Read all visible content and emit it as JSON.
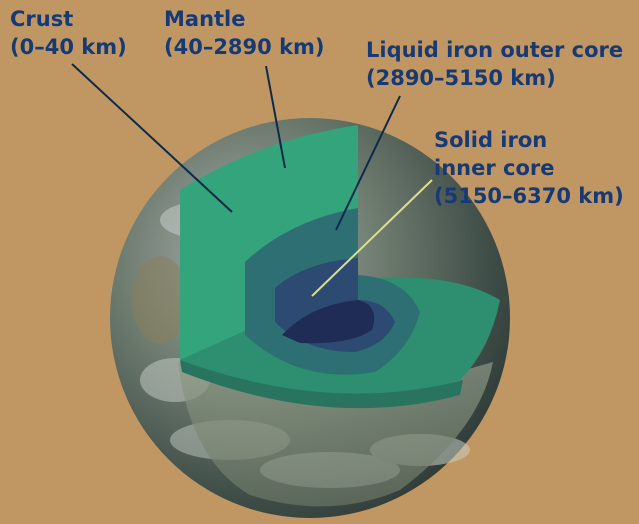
{
  "labels": {
    "crust": {
      "name": "Crust",
      "range": "(0–40 km)"
    },
    "mantle": {
      "name": "Mantle",
      "range": "(40–2890 km)"
    },
    "outer_core": {
      "name": "Liquid iron outer core",
      "range": "(2890–5150 km)"
    },
    "inner_core": {
      "line1": "Solid iron",
      "line2": "inner core",
      "range": "(5150–6370 km)"
    }
  },
  "colors": {
    "background": "#c09763",
    "label_text": "#173a75",
    "mantle": "#2f9f78",
    "outer_core": "#2d6f73",
    "inner_core": "#2c4a72",
    "core_center": "#1f2c55",
    "pointer_line_dark": "#0d2a4a",
    "pointer_line_light": "#d9df8f"
  }
}
